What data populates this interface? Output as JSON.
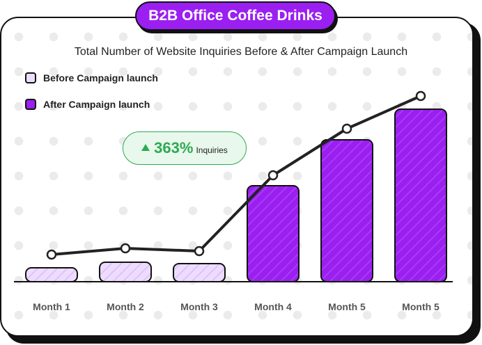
{
  "badge": {
    "title": "B2B Office Coffee Drinks"
  },
  "callout": {
    "value": "363%",
    "label": "Inquiries",
    "color": "#2eaa52"
  },
  "colors": {
    "before": "#eedcff",
    "after": "#9b1ff0",
    "line": "#222222"
  },
  "chart_data": {
    "type": "bar",
    "title": "Total Number of Website Inquiries Before & After Campaign Launch",
    "categories": [
      "Month 1",
      "Month 2",
      "Month 3",
      "Month 4",
      "Month 5",
      "Month 5"
    ],
    "series": [
      {
        "name": "Before Campaign launch",
        "values": [
          20,
          28,
          26,
          null,
          null,
          null
        ]
      },
      {
        "name": "After Campaign launch",
        "values": [
          null,
          null,
          null,
          138,
          204,
          248
        ]
      }
    ],
    "line_values": [
      39,
      48,
      44,
      153,
      220,
      267
    ],
    "ylim": [
      0,
      280
    ],
    "xlabel": "",
    "ylabel": "",
    "grid": false,
    "legend": "top-left"
  }
}
